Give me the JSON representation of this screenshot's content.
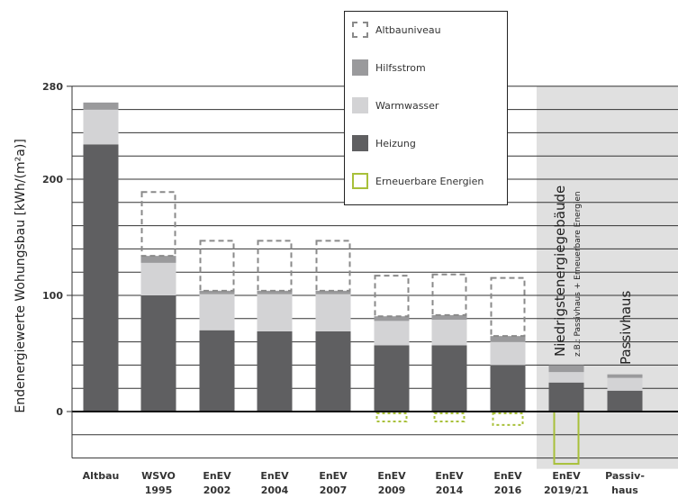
{
  "chart_data": {
    "type": "bar",
    "stacked": true,
    "ylabel": "Endenergiewerte Wohungsbau [kWh/(m²a)]",
    "ylim": [
      -40,
      280
    ],
    "yticks": [
      0,
      100,
      200,
      280
    ],
    "grid": true,
    "legend_placement": "top-center",
    "categories": [
      [
        "Altbau"
      ],
      [
        "WSVO",
        "1995"
      ],
      [
        "EnEV",
        "2002"
      ],
      [
        "EnEV",
        "2004"
      ],
      [
        "EnEV",
        "2007"
      ],
      [
        "EnEV",
        "2009"
      ],
      [
        "EnEV",
        "2014"
      ],
      [
        "EnEV",
        "2016"
      ],
      [
        "EnEV",
        "2019/21"
      ],
      [
        "Passiv-",
        "haus"
      ]
    ],
    "series": [
      {
        "name": "Heizung",
        "key": "heizung",
        "color": "#5f5f61",
        "values": [
          230,
          100,
          70,
          69,
          69,
          57,
          57,
          40,
          25,
          18
        ]
      },
      {
        "name": "Warmwasser",
        "key": "warmwasser",
        "color": "#d3d3d5",
        "values": [
          30,
          28,
          31,
          32,
          32,
          21,
          22,
          20,
          9,
          11
        ]
      },
      {
        "name": "Hilfsstrom",
        "key": "hilfsstrom",
        "color": "#9a9a9c",
        "values": [
          6,
          6,
          3,
          3,
          3,
          4,
          4,
          5,
          6,
          3
        ]
      },
      {
        "name": "Altbauniveau",
        "key": "altbauniveau",
        "color": "#8a8a8a",
        "style": "dashed-outline",
        "values": [
          null,
          55,
          43,
          43,
          43,
          35,
          35,
          50,
          null,
          null
        ]
      },
      {
        "name": "Erneuerbare Energien",
        "key": "erneuerbare",
        "color": "#a8c03a",
        "style": "outline",
        "values": [
          null,
          null,
          null,
          null,
          null,
          -7,
          -7,
          -10,
          -45,
          null
        ]
      }
    ],
    "legend": [
      {
        "label": "Altbauniveau",
        "key": "altbauniveau"
      },
      {
        "label": "Hilfsstrom",
        "key": "hilfsstrom"
      },
      {
        "label": "Warmwasser",
        "key": "warmwasser"
      },
      {
        "label": "Heizung",
        "key": "heizung"
      },
      {
        "label": "Erneuerbare Energien",
        "key": "erneuerbare"
      }
    ],
    "annotations": {
      "zone_title": "Niedrigstenergiegebäude",
      "zone_subtitle": "z.B.: Passivhaus + Erneuerbare Energien",
      "passivhaus_label": "Passivhaus"
    },
    "highlight_zone": {
      "from_category": 8,
      "to_category": 9,
      "color": "#e0e0e0"
    }
  }
}
